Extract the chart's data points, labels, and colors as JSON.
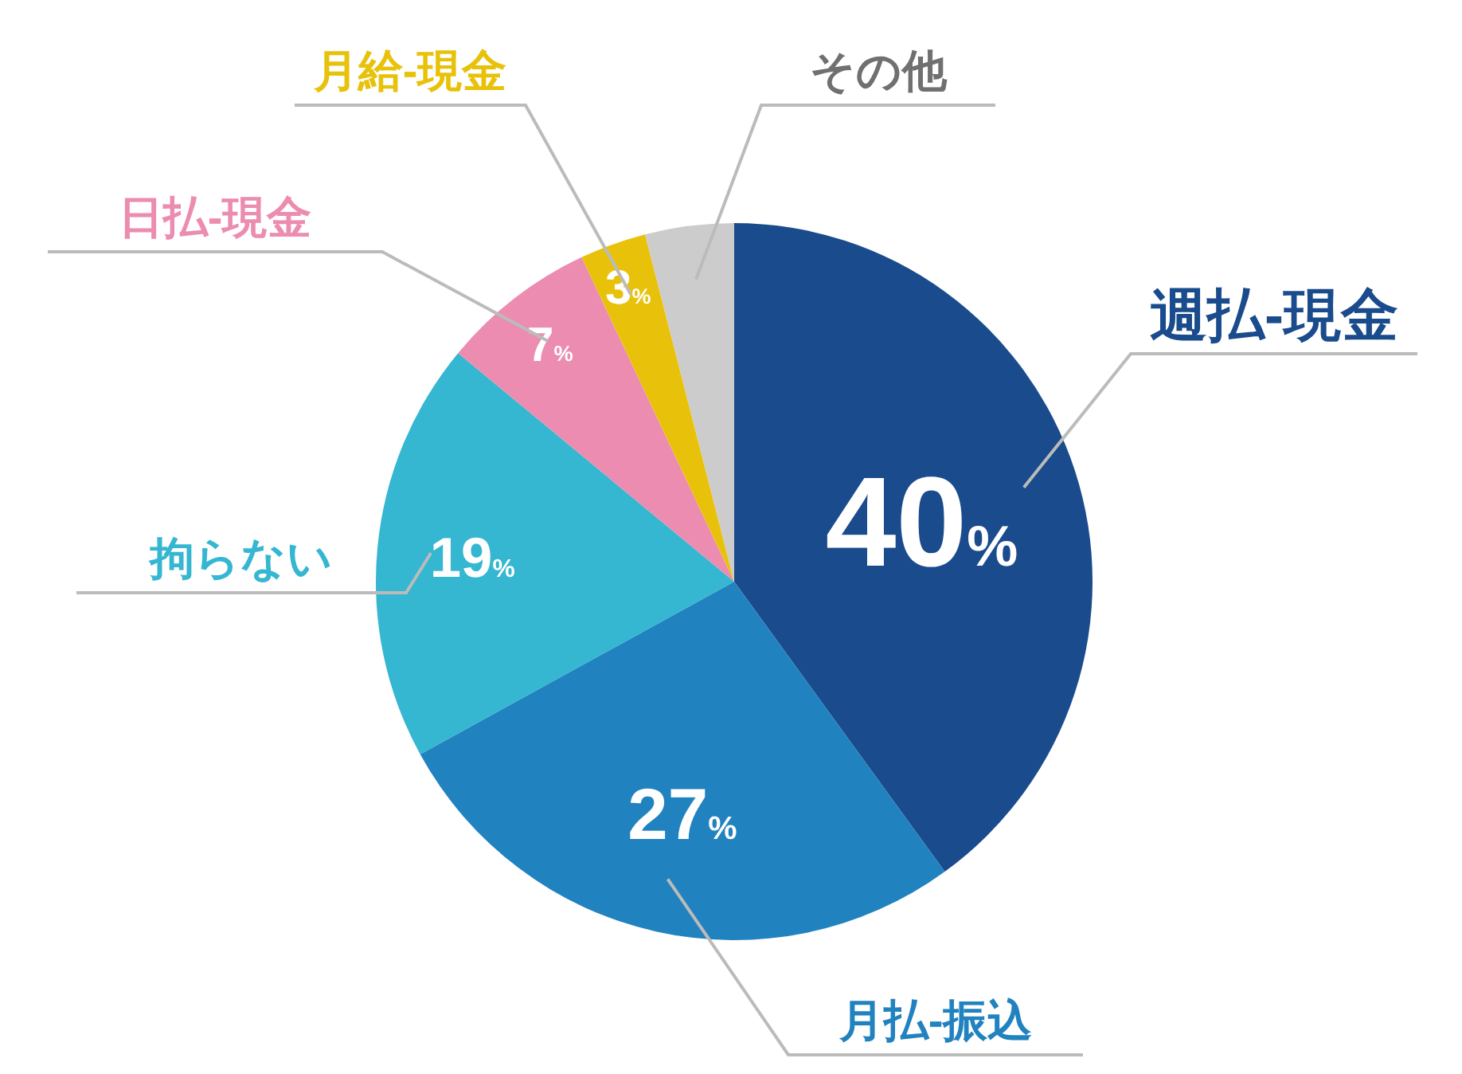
{
  "chart_data": {
    "type": "pie",
    "categories": [
      "週払-現金",
      "月払-振込",
      "拘らない",
      "日払-現金",
      "月給-現金",
      "その他"
    ],
    "values": [
      40,
      27,
      19,
      7,
      3,
      4
    ],
    "colors": [
      "#1a4b8c",
      "#2182c0",
      "#35b6d1",
      "#ec8cb0",
      "#e8c20a",
      "#cccccc"
    ],
    "value_labels": [
      "40%",
      "27%",
      "19%",
      "7%",
      "3%",
      null
    ]
  }
}
